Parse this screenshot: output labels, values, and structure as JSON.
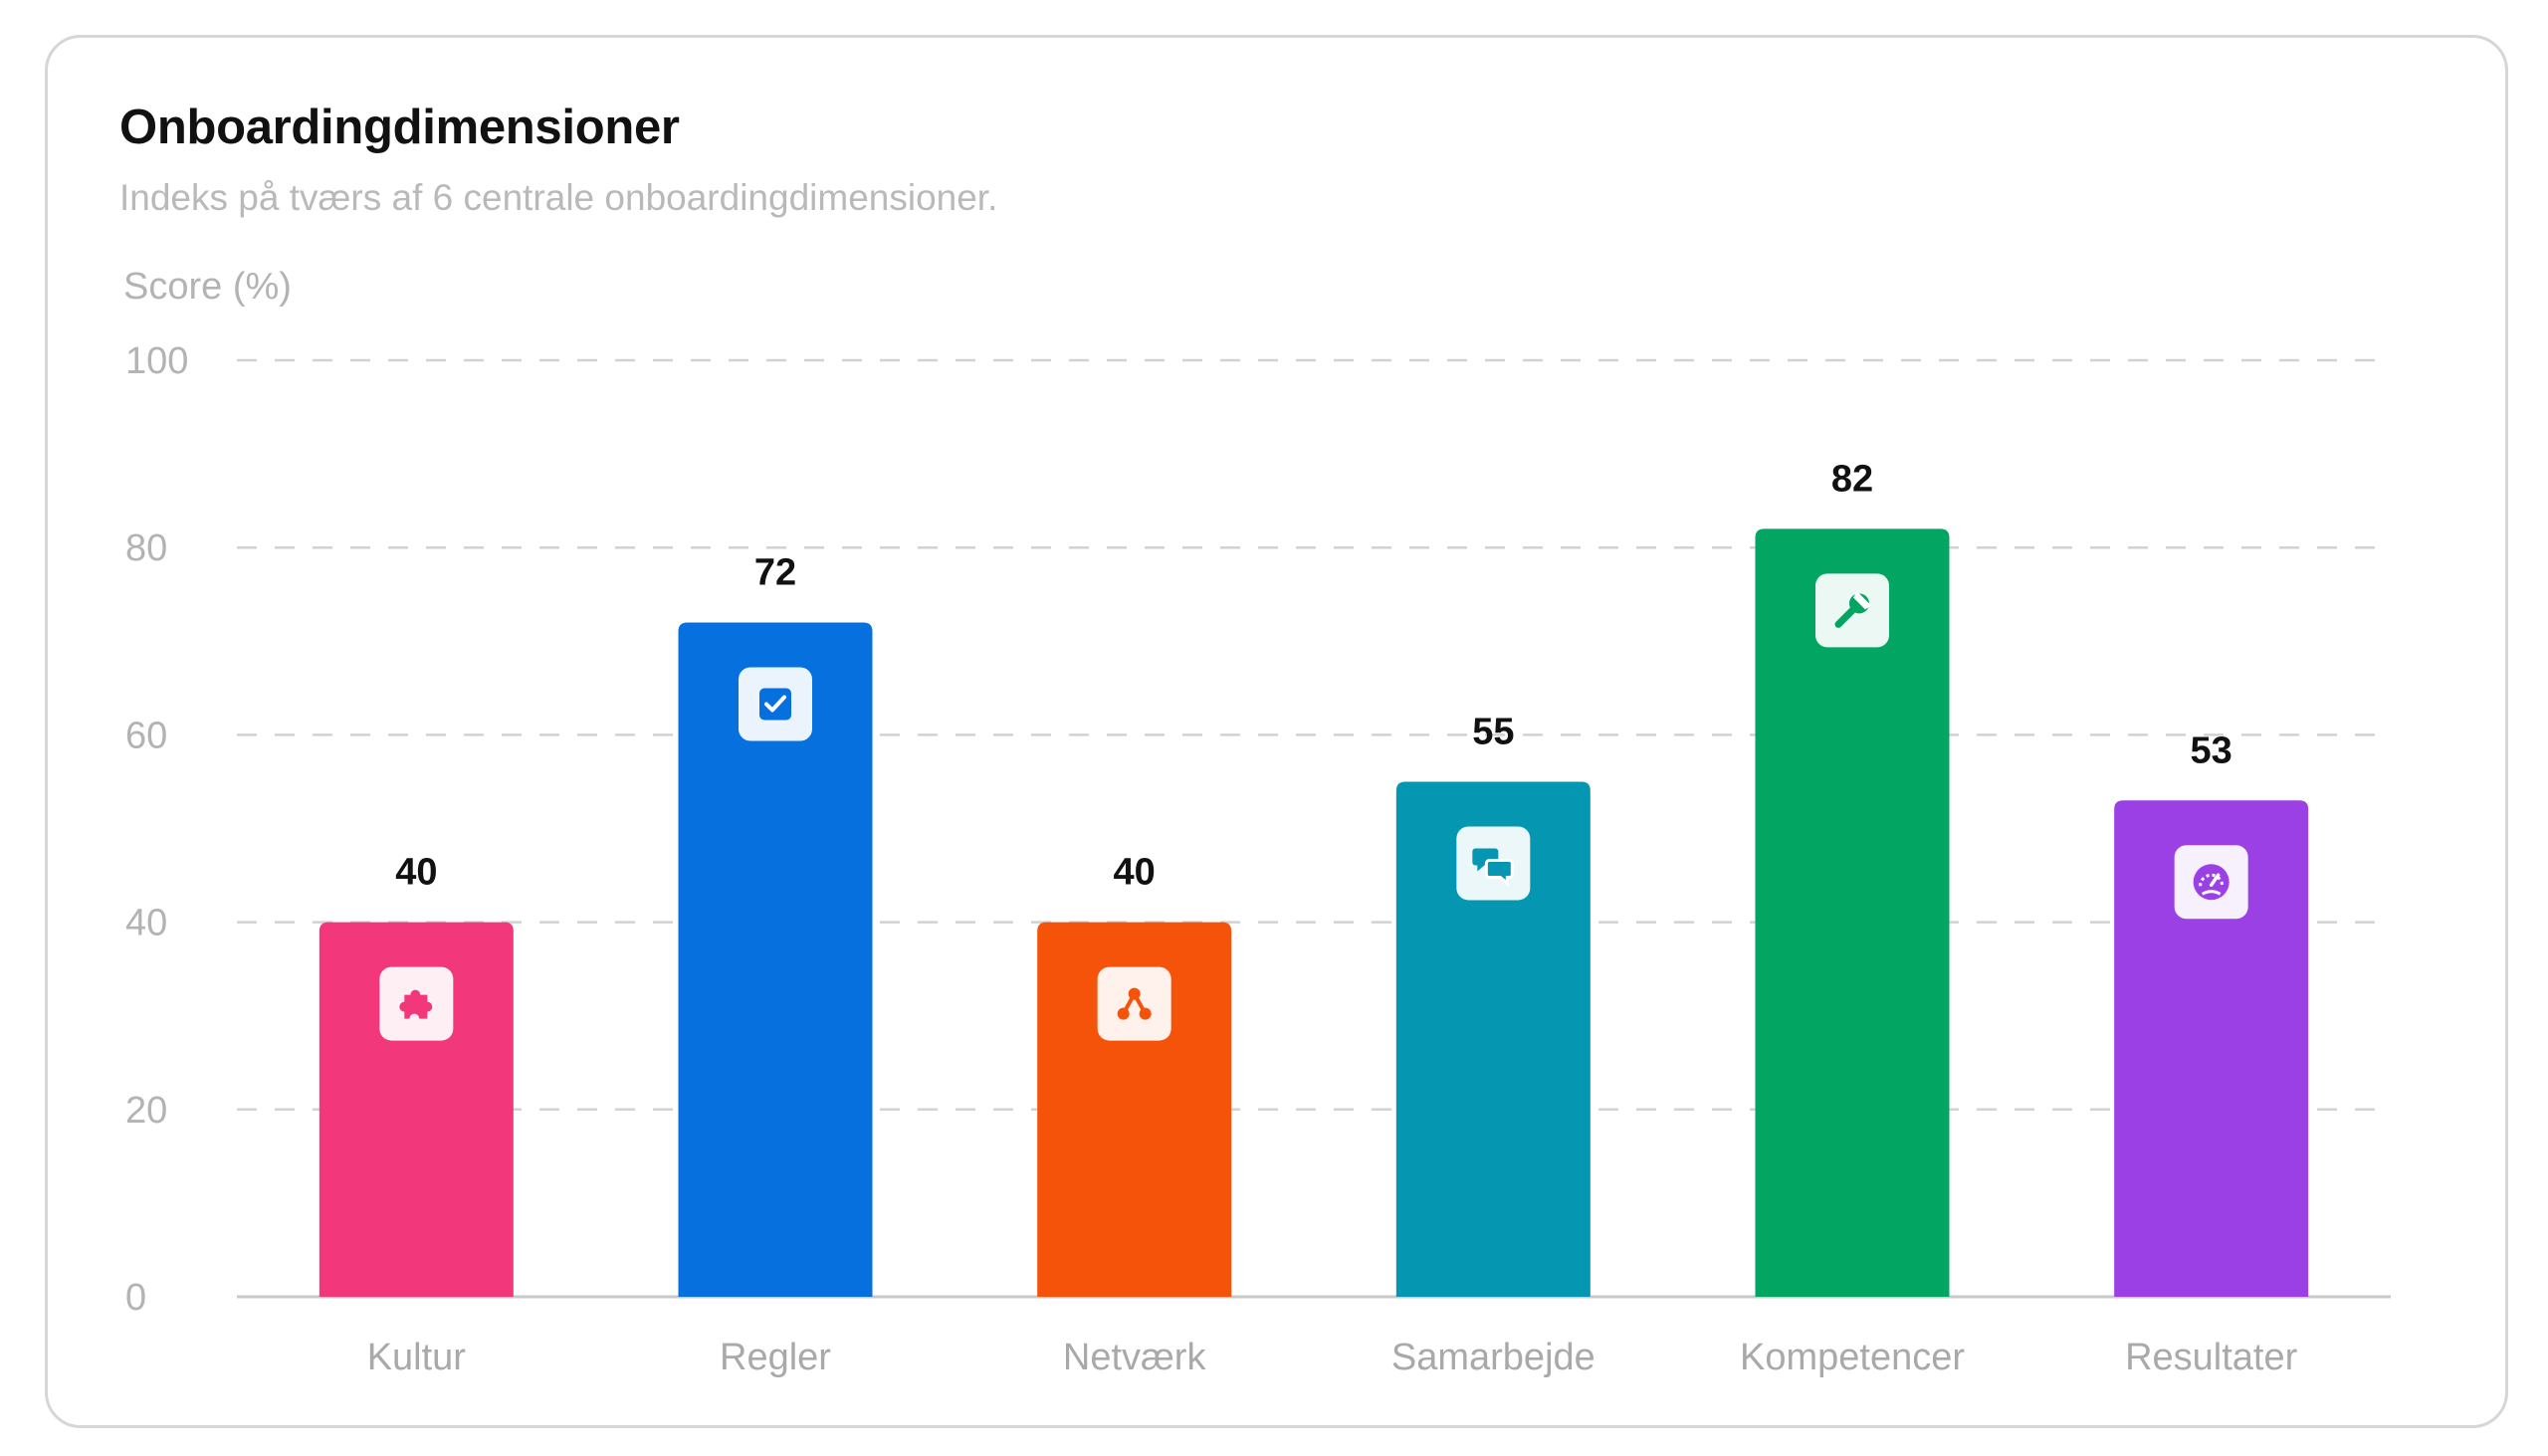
{
  "chart_data": {
    "type": "bar",
    "title": "Onboardingdimensioner",
    "subtitle": "Indeks på tværs af 6 centrale onboardingdimensioner.",
    "ylabel": "Score (%)",
    "xlabel": "",
    "ylim": [
      0,
      100
    ],
    "yticks": [
      0,
      20,
      40,
      60,
      80,
      100
    ],
    "grid": true,
    "categories": [
      "Kultur",
      "Regler",
      "Netværk",
      "Samarbejde",
      "Kompetencer",
      "Resultater"
    ],
    "values": [
      40,
      72,
      40,
      55,
      82,
      53
    ],
    "colors": [
      "#f2387b",
      "#0670df",
      "#f55309",
      "#0597b2",
      "#03a563",
      "#9b40e4"
    ],
    "icons": [
      "puzzle-icon",
      "checkbox-icon",
      "network-icon",
      "chat-icon",
      "wrench-icon",
      "gauge-icon"
    ]
  }
}
